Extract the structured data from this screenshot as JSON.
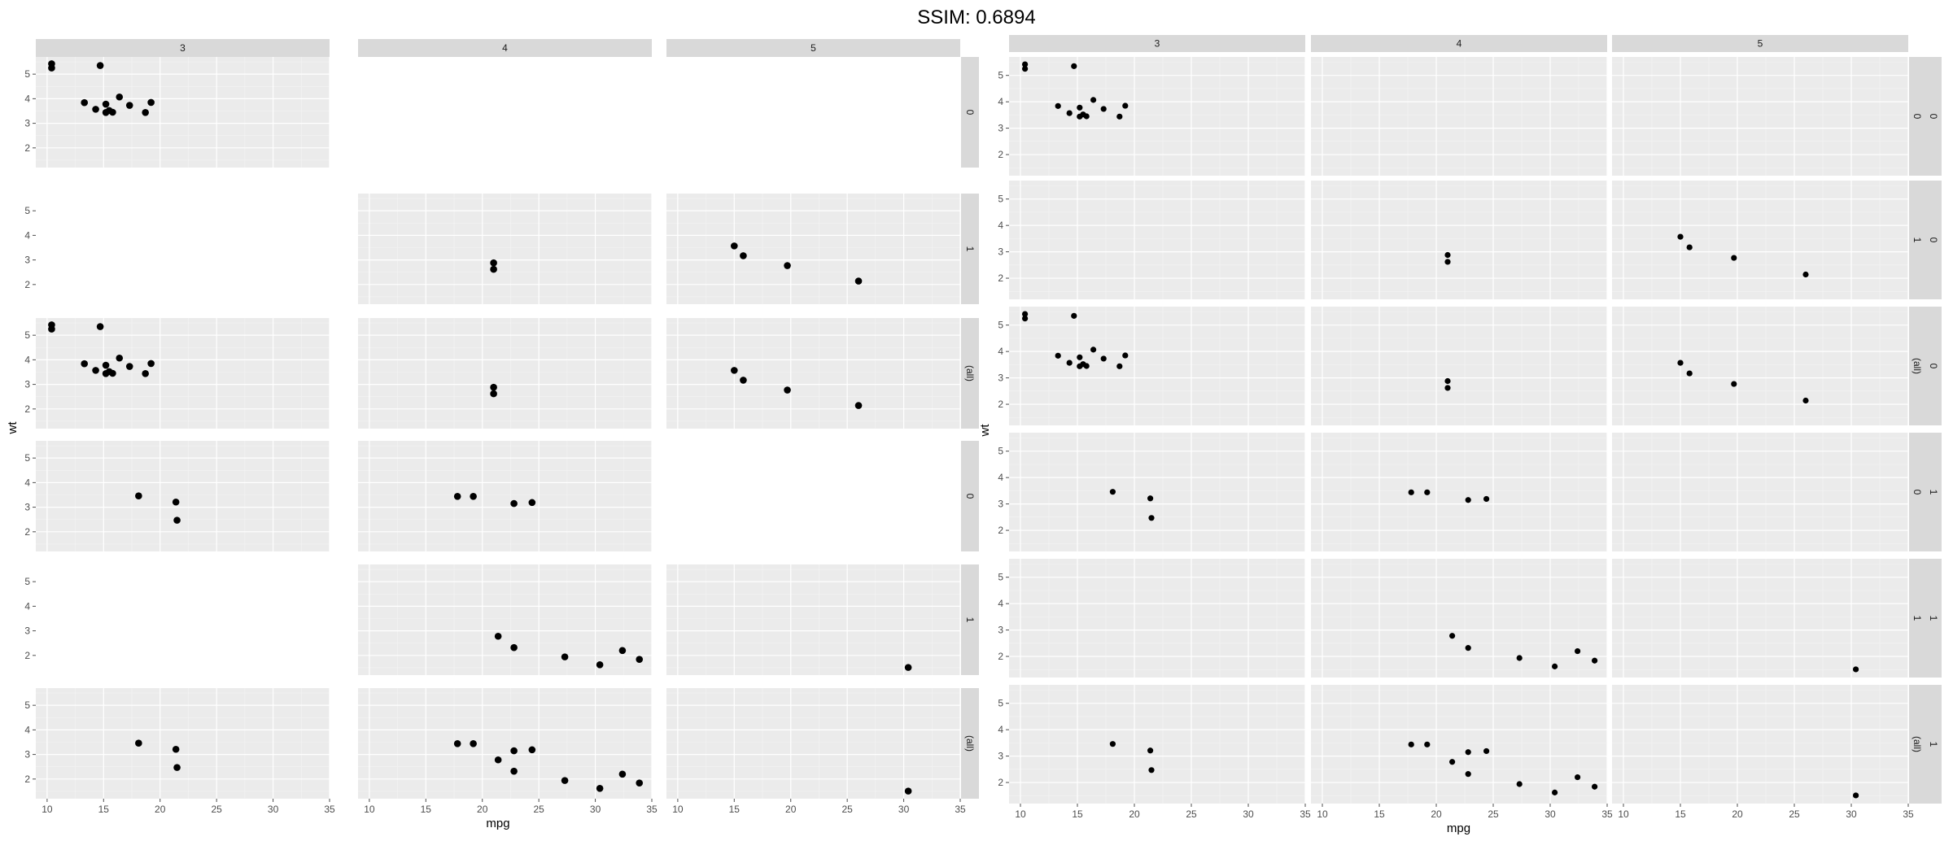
{
  "header": {
    "title": "SSIM: 0.6894"
  },
  "colors": {
    "panel_bg": "#ebebeb",
    "strip_bg": "#d9d9d9",
    "grid_major": "#ffffff",
    "grid_minor": "#f4f4f4",
    "point": "#000000",
    "tick": "#4d4d4d"
  },
  "chart_data": [
    {
      "type": "scatter",
      "facet": "grid",
      "xlabel": "mpg",
      "ylabel": "wt",
      "xlim": [
        9,
        35
      ],
      "ylim": [
        1.2,
        5.7
      ],
      "x_ticks": [
        10,
        15,
        20,
        25,
        30,
        35
      ],
      "y_ticks": [
        2,
        3,
        4,
        5
      ],
      "col_labels": [
        "3",
        "4",
        "5"
      ],
      "row_labels": [
        "0",
        "1",
        "(all)",
        "0",
        "1",
        "(all)"
      ],
      "panels": [
        [
          {
            "points": [
              [
                10.4,
                5.25
              ],
              [
                10.4,
                5.42
              ],
              [
                14.7,
                5.35
              ],
              [
                13.3,
                3.84
              ],
              [
                14.3,
                3.57
              ],
              [
                15.2,
                3.44
              ],
              [
                15.2,
                3.78
              ],
              [
                15.5,
                3.52
              ],
              [
                15.8,
                3.45
              ],
              [
                16.4,
                4.07
              ],
              [
                17.3,
                3.73
              ],
              [
                18.7,
                3.44
              ],
              [
                19.2,
                3.85
              ]
            ]
          },
          {
            "empty": true
          },
          {
            "empty": true
          }
        ],
        [
          {
            "empty": true
          },
          {
            "points": [
              [
                21.0,
                2.62
              ],
              [
                21.0,
                2.88
              ]
            ]
          },
          {
            "points": [
              [
                15.0,
                3.57
              ],
              [
                15.8,
                3.17
              ],
              [
                19.7,
                2.77
              ],
              [
                26.0,
                2.14
              ]
            ]
          }
        ],
        [
          {
            "points": [
              [
                10.4,
                5.25
              ],
              [
                10.4,
                5.42
              ],
              [
                14.7,
                5.35
              ],
              [
                13.3,
                3.84
              ],
              [
                14.3,
                3.57
              ],
              [
                15.2,
                3.44
              ],
              [
                15.2,
                3.78
              ],
              [
                15.5,
                3.52
              ],
              [
                15.8,
                3.45
              ],
              [
                16.4,
                4.07
              ],
              [
                17.3,
                3.73
              ],
              [
                18.7,
                3.44
              ],
              [
                19.2,
                3.85
              ]
            ]
          },
          {
            "points": [
              [
                21.0,
                2.62
              ],
              [
                21.0,
                2.88
              ]
            ]
          },
          {
            "points": [
              [
                15.0,
                3.57
              ],
              [
                15.8,
                3.17
              ],
              [
                19.7,
                2.77
              ],
              [
                26.0,
                2.14
              ]
            ]
          }
        ],
        [
          {
            "points": [
              [
                18.1,
                3.46
              ],
              [
                21.4,
                3.21
              ],
              [
                21.5,
                2.47
              ]
            ]
          },
          {
            "points": [
              [
                17.8,
                3.44
              ],
              [
                19.2,
                3.44
              ],
              [
                22.8,
                3.15
              ],
              [
                24.4,
                3.19
              ]
            ]
          },
          {
            "empty": true
          }
        ],
        [
          {
            "empty": true
          },
          {
            "points": [
              [
                21.4,
                2.78
              ],
              [
                22.8,
                2.32
              ],
              [
                27.3,
                1.94
              ],
              [
                30.4,
                1.62
              ],
              [
                32.4,
                2.2
              ],
              [
                33.9,
                1.84
              ]
            ]
          },
          {
            "points": [
              [
                30.4,
                1.51
              ]
            ]
          }
        ],
        [
          {
            "points": [
              [
                18.1,
                3.46
              ],
              [
                21.4,
                3.21
              ],
              [
                21.5,
                2.47
              ]
            ]
          },
          {
            "points": [
              [
                17.8,
                3.44
              ],
              [
                19.2,
                3.44
              ],
              [
                21.4,
                2.78
              ],
              [
                22.8,
                2.32
              ],
              [
                22.8,
                3.15
              ],
              [
                24.4,
                3.19
              ],
              [
                27.3,
                1.94
              ],
              [
                30.4,
                1.62
              ],
              [
                32.4,
                2.2
              ],
              [
                33.9,
                1.84
              ]
            ]
          },
          {
            "points": [
              [
                30.4,
                1.51
              ]
            ]
          }
        ]
      ]
    },
    {
      "type": "scatter",
      "facet": "grid",
      "xlabel": "mpg",
      "ylabel": "wt",
      "xlim": [
        9,
        35
      ],
      "ylim": [
        1.2,
        5.7
      ],
      "x_ticks": [
        10,
        15,
        20,
        25,
        30,
        35
      ],
      "y_ticks": [
        2,
        3,
        4,
        5
      ],
      "col_labels": [
        "3",
        "4",
        "5"
      ],
      "row_labels_outer": [
        "0",
        "0",
        "0",
        "1",
        "1",
        "1"
      ],
      "row_labels_inner": [
        "0",
        "1",
        "(all)",
        "0",
        "1",
        "(all)"
      ],
      "panels": [
        [
          {
            "points": [
              [
                10.4,
                5.25
              ],
              [
                10.4,
                5.42
              ],
              [
                14.7,
                5.35
              ],
              [
                13.3,
                3.84
              ],
              [
                14.3,
                3.57
              ],
              [
                15.2,
                3.44
              ],
              [
                15.2,
                3.78
              ],
              [
                15.5,
                3.52
              ],
              [
                15.8,
                3.45
              ],
              [
                16.4,
                4.07
              ],
              [
                17.3,
                3.73
              ],
              [
                18.7,
                3.44
              ],
              [
                19.2,
                3.85
              ]
            ]
          },
          {
            "points": []
          },
          {
            "points": []
          }
        ],
        [
          {
            "points": []
          },
          {
            "points": [
              [
                21.0,
                2.62
              ],
              [
                21.0,
                2.88
              ]
            ]
          },
          {
            "points": [
              [
                15.0,
                3.57
              ],
              [
                15.8,
                3.17
              ],
              [
                19.7,
                2.77
              ],
              [
                26.0,
                2.14
              ]
            ]
          }
        ],
        [
          {
            "points": [
              [
                10.4,
                5.25
              ],
              [
                10.4,
                5.42
              ],
              [
                14.7,
                5.35
              ],
              [
                13.3,
                3.84
              ],
              [
                14.3,
                3.57
              ],
              [
                15.2,
                3.44
              ],
              [
                15.2,
                3.78
              ],
              [
                15.5,
                3.52
              ],
              [
                15.8,
                3.45
              ],
              [
                16.4,
                4.07
              ],
              [
                17.3,
                3.73
              ],
              [
                18.7,
                3.44
              ],
              [
                19.2,
                3.85
              ]
            ]
          },
          {
            "points": [
              [
                21.0,
                2.62
              ],
              [
                21.0,
                2.88
              ]
            ]
          },
          {
            "points": [
              [
                15.0,
                3.57
              ],
              [
                15.8,
                3.17
              ],
              [
                19.7,
                2.77
              ],
              [
                26.0,
                2.14
              ]
            ]
          }
        ],
        [
          {
            "points": [
              [
                18.1,
                3.46
              ],
              [
                21.4,
                3.21
              ],
              [
                21.5,
                2.47
              ]
            ]
          },
          {
            "points": [
              [
                17.8,
                3.44
              ],
              [
                19.2,
                3.44
              ],
              [
                22.8,
                3.15
              ],
              [
                24.4,
                3.19
              ]
            ]
          },
          {
            "points": []
          }
        ],
        [
          {
            "points": []
          },
          {
            "points": [
              [
                21.4,
                2.78
              ],
              [
                22.8,
                2.32
              ],
              [
                27.3,
                1.94
              ],
              [
                30.4,
                1.62
              ],
              [
                32.4,
                2.2
              ],
              [
                33.9,
                1.84
              ]
            ]
          },
          {
            "points": [
              [
                30.4,
                1.51
              ]
            ]
          }
        ],
        [
          {
            "points": [
              [
                18.1,
                3.46
              ],
              [
                21.4,
                3.21
              ],
              [
                21.5,
                2.47
              ]
            ]
          },
          {
            "points": [
              [
                17.8,
                3.44
              ],
              [
                19.2,
                3.44
              ],
              [
                21.4,
                2.78
              ],
              [
                22.8,
                2.32
              ],
              [
                22.8,
                3.15
              ],
              [
                24.4,
                3.19
              ],
              [
                27.3,
                1.94
              ],
              [
                30.4,
                1.62
              ],
              [
                32.4,
                2.2
              ],
              [
                33.9,
                1.84
              ]
            ]
          },
          {
            "points": [
              [
                30.4,
                1.51
              ]
            ]
          }
        ]
      ]
    }
  ]
}
